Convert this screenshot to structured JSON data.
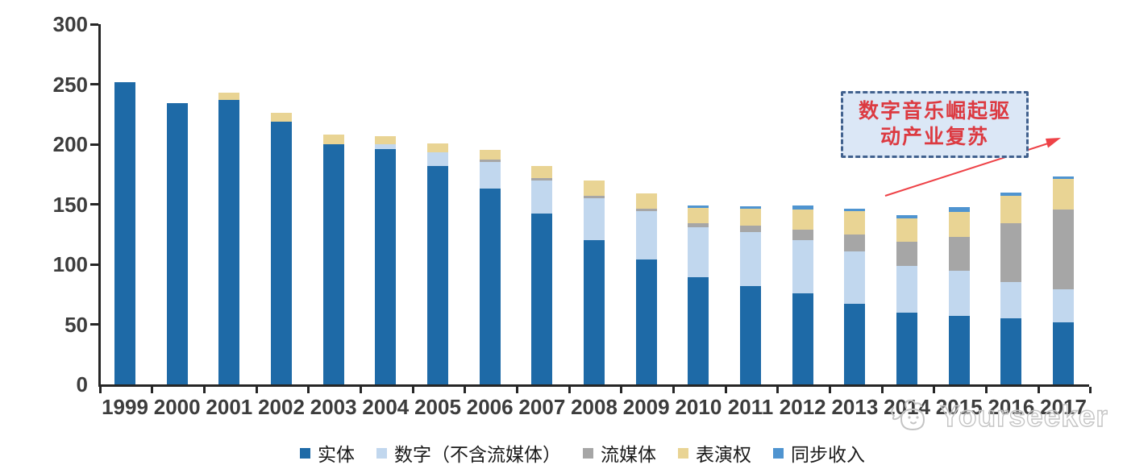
{
  "chart_data": {
    "type": "bar",
    "stacked": true,
    "title": "",
    "xlabel": "",
    "ylabel": "",
    "grid": false,
    "legend_position": "bottom",
    "ylim": [
      0,
      300
    ],
    "yticks": [
      0,
      50,
      100,
      150,
      200,
      250,
      300
    ],
    "categories": [
      "1999",
      "2000",
      "2001",
      "2002",
      "2003",
      "2004",
      "2005",
      "2006",
      "2007",
      "2008",
      "2009",
      "2010",
      "2011",
      "2012",
      "2013",
      "2014",
      "2015",
      "2016",
      "2017"
    ],
    "series": [
      {
        "name": "实体",
        "key": "physical",
        "color": "#1e6aa7",
        "values": [
          252,
          234,
          237,
          219,
          200,
          196,
          182,
          163,
          142,
          120,
          104,
          89,
          82,
          76,
          67,
          60,
          57,
          55,
          52
        ]
      },
      {
        "name": "数字（不含流媒体）",
        "key": "digital-excl-streaming",
        "color": "#c1d7ee",
        "values": [
          0,
          0,
          0,
          0,
          0,
          4,
          11,
          22,
          28,
          35,
          40,
          42,
          45,
          44,
          44,
          39,
          38,
          30,
          27
        ]
      },
      {
        "name": "流媒体",
        "key": "streaming",
        "color": "#a6a6a6",
        "values": [
          0,
          0,
          0,
          0,
          0,
          0,
          0,
          2,
          2,
          2,
          2,
          3,
          5,
          9,
          14,
          20,
          28,
          49,
          67
        ]
      },
      {
        "name": "表演权",
        "key": "performance-rights",
        "color": "#e9d494",
        "values": [
          0,
          0,
          6,
          7,
          8,
          7,
          8,
          8,
          10,
          13,
          13,
          13,
          14,
          17,
          19,
          19,
          21,
          23,
          25
        ]
      },
      {
        "name": "同步收入",
        "key": "sync-revenue",
        "color": "#4f94d0",
        "values": [
          0,
          0,
          0,
          0,
          0,
          0,
          0,
          0,
          0,
          0,
          0,
          2,
          2,
          3,
          2,
          3,
          4,
          3,
          2
        ]
      }
    ],
    "totals": [
      252,
      234,
      243,
      226,
      208,
      207,
      201,
      195,
      182,
      170,
      159,
      149,
      148,
      149,
      146,
      141,
      148,
      160,
      173
    ]
  },
  "annotation": {
    "line1": "数字音乐崛起驱",
    "line2": "动产业复苏",
    "text_color": "#dc3a41",
    "box_fill": "#dbe7f6",
    "box_border": "#41618e",
    "arrow_color": "#ee4247"
  },
  "watermark": {
    "text": "Yourseeker",
    "logo": "yourseeker-cat-logo",
    "color": "#c4c4c4"
  },
  "axis": {
    "line_color": "#262626",
    "label_color": "#3d3d3d"
  }
}
